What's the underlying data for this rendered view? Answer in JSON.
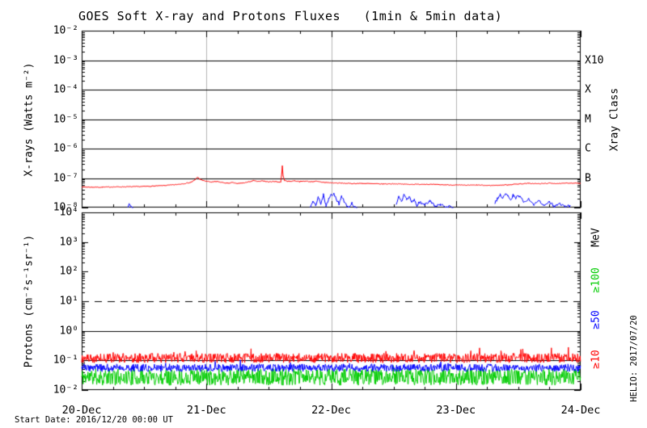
{
  "title": "GOES Soft X-ray and Protons Fluxes   (1min & 5min data)",
  "footer_start_date": "Start Date: 2016/12/20 00:00 UT",
  "watermark": "HELIO: 2017/07/20",
  "x_tick_labels": [
    "20-Dec",
    "21-Dec",
    "22-Dec",
    "23-Dec",
    "24-Dec"
  ],
  "colors": {
    "xray_long": "#ff0000",
    "xray_short": "#0000ff",
    "protons_ge10": "#ff0000",
    "protons_ge50": "#0000ff",
    "protons_ge100": "#00cc00",
    "gridline": "#b4b4b4",
    "axis": "#000000"
  },
  "chart_data": [
    {
      "type": "line",
      "panel": "xray",
      "ylabel": "X-rays (Watts m⁻²)",
      "yscale": "log",
      "ylim": [
        1e-08,
        0.01
      ],
      "y_tick_labels": [
        "10⁻²",
        "10⁻³",
        "10⁻⁴",
        "10⁻⁵",
        "10⁻⁶",
        "10⁻⁷",
        "10⁻⁸"
      ],
      "xlim_hours": [
        0,
        96
      ],
      "x_start": "2016/12/20 00:00 UT",
      "right_axis_label": "Xray Class",
      "xray_classes": [
        {
          "label": "X10",
          "level": 0.001
        },
        {
          "label": "X",
          "level": 0.0001
        },
        {
          "label": "M",
          "level": 1e-05
        },
        {
          "label": "C",
          "level": 1e-06
        },
        {
          "label": "B",
          "level": 1e-07
        }
      ],
      "solid_hlines": [
        0.001,
        0.0001,
        1e-05,
        1e-06,
        1e-07
      ],
      "grid_vlines_hours": [
        24,
        48,
        72
      ],
      "series": [
        {
          "name": "xray-long",
          "color": "#ff0000",
          "value_scale": 1e-08,
          "noise_dex": 0.013,
          "points": [
            [
              0,
              5.0
            ],
            [
              2,
              4.9
            ],
            [
              4,
              4.9
            ],
            [
              6,
              5.0
            ],
            [
              8,
              5.05
            ],
            [
              10,
              5.1
            ],
            [
              12,
              5.2
            ],
            [
              14,
              5.35
            ],
            [
              16,
              5.6
            ],
            [
              18,
              5.95
            ],
            [
              20,
              6.6
            ],
            [
              21,
              7.2
            ],
            [
              21.8,
              8.6
            ],
            [
              22.3,
              10.8
            ],
            [
              22.7,
              9.2
            ],
            [
              23.2,
              8.4
            ],
            [
              24,
              7.8
            ],
            [
              25,
              7.3
            ],
            [
              26,
              7.6
            ],
            [
              27,
              7.1
            ],
            [
              28,
              6.7
            ],
            [
              29,
              7.0
            ],
            [
              30,
              6.5
            ],
            [
              31,
              6.8
            ],
            [
              32,
              7.3
            ],
            [
              33,
              8.2
            ],
            [
              34,
              7.6
            ],
            [
              35,
              8.0
            ],
            [
              36,
              7.4
            ],
            [
              37,
              7.7
            ],
            [
              38,
              7.3
            ],
            [
              38.3,
              7.4
            ],
            [
              38.5,
              15
            ],
            [
              38.6,
              26
            ],
            [
              38.75,
              12
            ],
            [
              39,
              8.2
            ],
            [
              39.5,
              7.9
            ],
            [
              40,
              7.7
            ],
            [
              41,
              8.1
            ],
            [
              42,
              7.6
            ],
            [
              43,
              7.9
            ],
            [
              44,
              7.5
            ],
            [
              45,
              7.8
            ],
            [
              46,
              7.3
            ],
            [
              47,
              7.1
            ],
            [
              48,
              6.9
            ],
            [
              50,
              6.7
            ],
            [
              52,
              6.5
            ],
            [
              54,
              6.6
            ],
            [
              56,
              6.4
            ],
            [
              58,
              6.3
            ],
            [
              60,
              6.4
            ],
            [
              62,
              6.2
            ],
            [
              64,
              6.1
            ],
            [
              66,
              6.2
            ],
            [
              68,
              6.0
            ],
            [
              70,
              5.9
            ],
            [
              72,
              5.8
            ],
            [
              74,
              5.7
            ],
            [
              76,
              5.8
            ],
            [
              78,
              5.6
            ],
            [
              80,
              5.7
            ],
            [
              82,
              5.9
            ],
            [
              84,
              6.3
            ],
            [
              86,
              6.6
            ],
            [
              88,
              6.4
            ],
            [
              90,
              6.7
            ],
            [
              92,
              6.5
            ],
            [
              94,
              6.8
            ],
            [
              96,
              6.6
            ]
          ]
        },
        {
          "name": "xray-short",
          "color": "#0000ff",
          "value_scale": 1e-08,
          "noise_dex": 0.05,
          "segments": [
            [
              [
                8.9,
                1.0
              ],
              [
                9.1,
                1.35
              ],
              [
                9.3,
                1.15
              ],
              [
                9.6,
                1.05
              ],
              [
                9.9,
                1.0
              ]
            ],
            [
              [
                44,
                1.0
              ],
              [
                44.5,
                1.6
              ],
              [
                45,
                1.2
              ],
              [
                45.5,
                2.2
              ],
              [
                46,
                1.4
              ],
              [
                46.5,
                2.8
              ],
              [
                47,
                1.2
              ],
              [
                47.5,
                1.9
              ],
              [
                48,
                2.6
              ],
              [
                48.5,
                3.1
              ],
              [
                49,
                2.0
              ],
              [
                49.5,
                1.3
              ],
              [
                50,
                2.4
              ],
              [
                50.5,
                1.6
              ],
              [
                51,
                1.1
              ],
              [
                51.5,
                1.0
              ],
              [
                52,
                1.4
              ],
              [
                52.5,
                1.05
              ],
              [
                53,
                1.0
              ]
            ],
            [
              [
                60.5,
                1.2
              ],
              [
                61,
                2.2
              ],
              [
                61.5,
                1.6
              ],
              [
                62,
                2.6
              ],
              [
                62.5,
                1.9
              ],
              [
                63,
                2.3
              ],
              [
                63.5,
                1.5
              ],
              [
                64,
                1.8
              ],
              [
                64.5,
                1.2
              ],
              [
                65,
                1.5
              ],
              [
                66,
                1.3
              ],
              [
                67,
                1.6
              ],
              [
                68,
                1.1
              ],
              [
                69,
                1.3
              ],
              [
                70,
                1.0
              ],
              [
                71,
                1.15
              ],
              [
                71.5,
                1.0
              ]
            ],
            [
              [
                79.5,
                1.4
              ],
              [
                80,
                2.0
              ],
              [
                80.5,
                2.8
              ],
              [
                81,
                2.2
              ],
              [
                81.5,
                3.0
              ],
              [
                82,
                2.4
              ],
              [
                82.5,
                1.8
              ],
              [
                83,
                2.6
              ],
              [
                83.5,
                2.1
              ],
              [
                84,
                2.7
              ],
              [
                85,
                1.6
              ],
              [
                86,
                1.9
              ],
              [
                87,
                1.3
              ],
              [
                88,
                1.7
              ],
              [
                89,
                1.2
              ],
              [
                90,
                1.5
              ],
              [
                91,
                1.1
              ],
              [
                92,
                1.3
              ],
              [
                93,
                1.05
              ],
              [
                94,
                1.15
              ]
            ]
          ]
        }
      ]
    },
    {
      "type": "line",
      "panel": "protons",
      "ylabel": "Protons (cm⁻²s⁻¹sr⁻¹)",
      "yscale": "log",
      "ylim": [
        0.01,
        10000.0
      ],
      "y_tick_labels": [
        "10⁴",
        "10³",
        "10²",
        "10¹",
        "10⁰",
        "10⁻¹",
        "10⁻²"
      ],
      "xlim_hours": [
        0,
        96
      ],
      "right_axis_label": "MeV",
      "solid_hlines": [
        1.0,
        0.1
      ],
      "dashed_hlines": [
        10.0
      ],
      "grid_vlines_hours": [
        24,
        48,
        72
      ],
      "series": [
        {
          "name": "protons-ge10",
          "threshold_label": "≥10",
          "color": "#ff0000",
          "log10_mean": -0.92,
          "log10_noise": 0.16,
          "spike_dex": 0.32,
          "spike_prob": 0.04
        },
        {
          "name": "protons-ge50",
          "threshold_label": "≥50",
          "color": "#0000ff",
          "log10_mean": -1.25,
          "log10_noise": 0.13,
          "spike_dex": 0.25,
          "spike_prob": 0.02
        },
        {
          "name": "protons-ge100",
          "threshold_label": "≥100",
          "color": "#00cc00",
          "log10_mean": -1.56,
          "log10_noise": 0.28,
          "spike_dex": 0.18,
          "spike_prob": 0.02
        }
      ]
    }
  ]
}
